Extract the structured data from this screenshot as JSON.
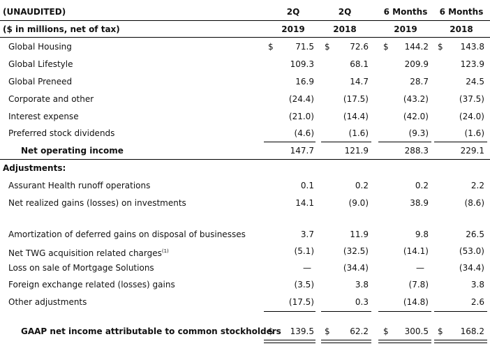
{
  "header": {
    "row1": {
      "label": "(UNAUDITED)",
      "col1": "2Q",
      "col2": "2Q",
      "col3": "6 Months",
      "col4": "6 Months"
    },
    "row2": {
      "label": "($ in millions, net of tax)",
      "col1": "2019",
      "col2": "2018",
      "col3": "2019",
      "col4": "2018"
    }
  },
  "currency_symbol": "$",
  "rows": {
    "global_housing": {
      "label": "Global Housing",
      "v1": "71.5",
      "v2": "72.6",
      "v3": "144.2",
      "v4": "143.8"
    },
    "global_lifestyle": {
      "label": "Global Lifestyle",
      "v1": "109.3",
      "v2": "68.1",
      "v3": "209.9",
      "v4": "123.9"
    },
    "global_preneed": {
      "label": "Global Preneed",
      "v1": "16.9",
      "v2": "14.7",
      "v3": "28.7",
      "v4": "24.5"
    },
    "corporate_other": {
      "label": "Corporate and other",
      "v1": "(24.4)",
      "v2": "(17.5)",
      "v3": "(43.2)",
      "v4": "(37.5)"
    },
    "interest_expense": {
      "label": "Interest expense",
      "v1": "(21.0)",
      "v2": "(14.4)",
      "v3": "(42.0)",
      "v4": "(24.0)"
    },
    "preferred_dividends": {
      "label": "Preferred stock dividends",
      "v1": "(4.6)",
      "v2": "(1.6)",
      "v3": "(9.3)",
      "v4": "(1.6)"
    },
    "net_operating_income": {
      "label": "Net operating income",
      "v1": "147.7",
      "v2": "121.9",
      "v3": "288.3",
      "v4": "229.1"
    },
    "adjustments": {
      "label": "Adjustments:"
    },
    "health_runoff": {
      "label": "Assurant Health runoff operations",
      "v1": "0.1",
      "v2": "0.2",
      "v3": "0.2",
      "v4": "2.2"
    },
    "realized_gains": {
      "label": "Net realized gains (losses) on investments",
      "v1": "14.1",
      "v2": "(9.0)",
      "v3": "38.9",
      "v4": "(8.6)"
    },
    "amortization": {
      "label": "Amortization of deferred gains on disposal of businesses",
      "v1": "3.7",
      "v2": "11.9",
      "v3": "9.8",
      "v4": "26.5"
    },
    "twg_charges": {
      "label": "Net TWG acquisition related charges",
      "footnote": "(1)",
      "v1": "(5.1)",
      "v2": "(32.5)",
      "v3": "(14.1)",
      "v4": "(53.0)"
    },
    "mortgage_loss": {
      "label": "Loss on sale of Mortgage Solutions",
      "v1": "—",
      "v2": "(34.4)",
      "v3": "—",
      "v4": "(34.4)"
    },
    "fx_gains": {
      "label": "Foreign exchange related (losses) gains",
      "v1": "(3.5)",
      "v2": "3.8",
      "v3": "(7.8)",
      "v4": "3.8"
    },
    "other_adjustments": {
      "label": "Other adjustments",
      "v1": "(17.5)",
      "v2": "0.3",
      "v3": "(14.8)",
      "v4": "2.6"
    },
    "gaap_net_income": {
      "label": "GAAP net income attributable to common stockholders",
      "v1": "139.5",
      "v2": "62.2",
      "v3": "300.5",
      "v4": "168.2"
    }
  }
}
